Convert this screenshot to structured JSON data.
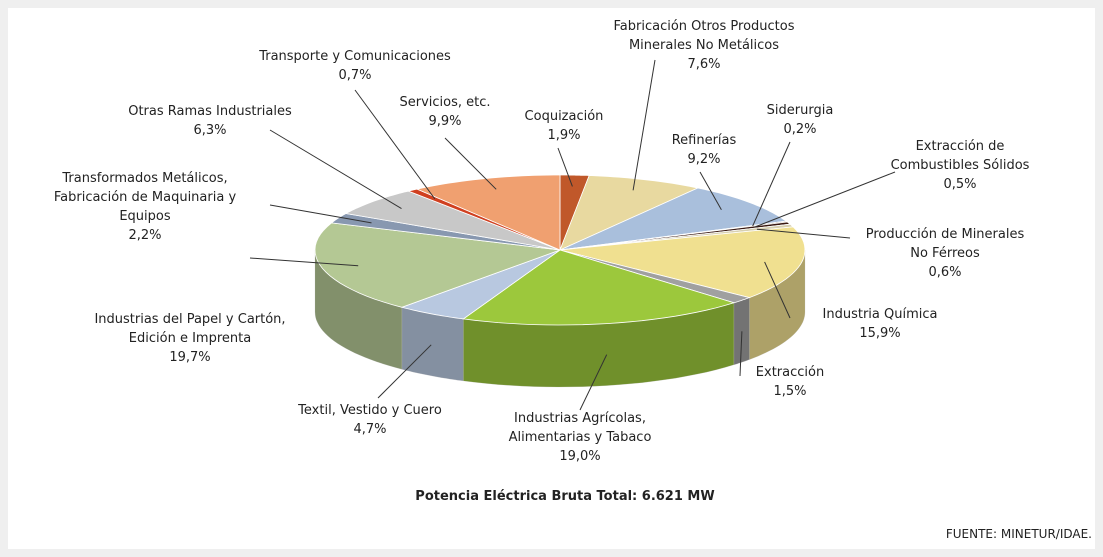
{
  "chart_data": {
    "type": "pie",
    "categories": [
      [
        "Coquización"
      ],
      [
        "Fabricación Otros Productos",
        "Minerales No Metálicos"
      ],
      [
        "Refinerías"
      ],
      [
        "Siderurgia"
      ],
      [
        "Extracción de",
        "Combustibles Sólidos"
      ],
      [
        "Producción de Minerales",
        "No Férreos"
      ],
      [
        "Industria Química"
      ],
      [
        "Extracción"
      ],
      [
        "Industrias Agrícolas,",
        "Alimentarias y Tabaco"
      ],
      [
        "Textil, Vestido y Cuero"
      ],
      [
        "Industrias del Papel y Cartón,",
        "Edición e Imprenta"
      ],
      [
        "Transformados Metálicos,",
        "Fabricación de Maquinaria y",
        "Equipos"
      ],
      [
        "Otras Ramas Industriales"
      ],
      [
        "Transporte y Comunicaciones"
      ],
      [
        "Servicios, etc."
      ]
    ],
    "values": [
      1.9,
      7.6,
      9.2,
      0.2,
      0.5,
      0.6,
      15.9,
      1.5,
      19.0,
      4.7,
      19.7,
      2.2,
      6.3,
      0.7,
      9.9
    ],
    "value_labels": [
      "1,9%",
      "7,6%",
      "9,2%",
      "0,2%",
      "0,5%",
      "0,6%",
      "15,9%",
      "1,5%",
      "19,0%",
      "4,7%",
      "19,7%",
      "2,2%",
      "6,3%",
      "0,7%",
      "9,9%"
    ],
    "colors": [
      "#c0582a",
      "#e8d9a0",
      "#a9bfdc",
      "#5a3020",
      "#3a1a12",
      "#d8d0b0",
      "#f0e090",
      "#a0a0a0",
      "#9cc83c",
      "#b8c8e0",
      "#b4c894",
      "#8898b0",
      "#c8c8c8",
      "#d04020",
      "#f0a070"
    ],
    "note": "Potencia Eléctrica Bruta Total: 6.621 MW",
    "source": "FUENTE: MINETUR/IDAE."
  }
}
